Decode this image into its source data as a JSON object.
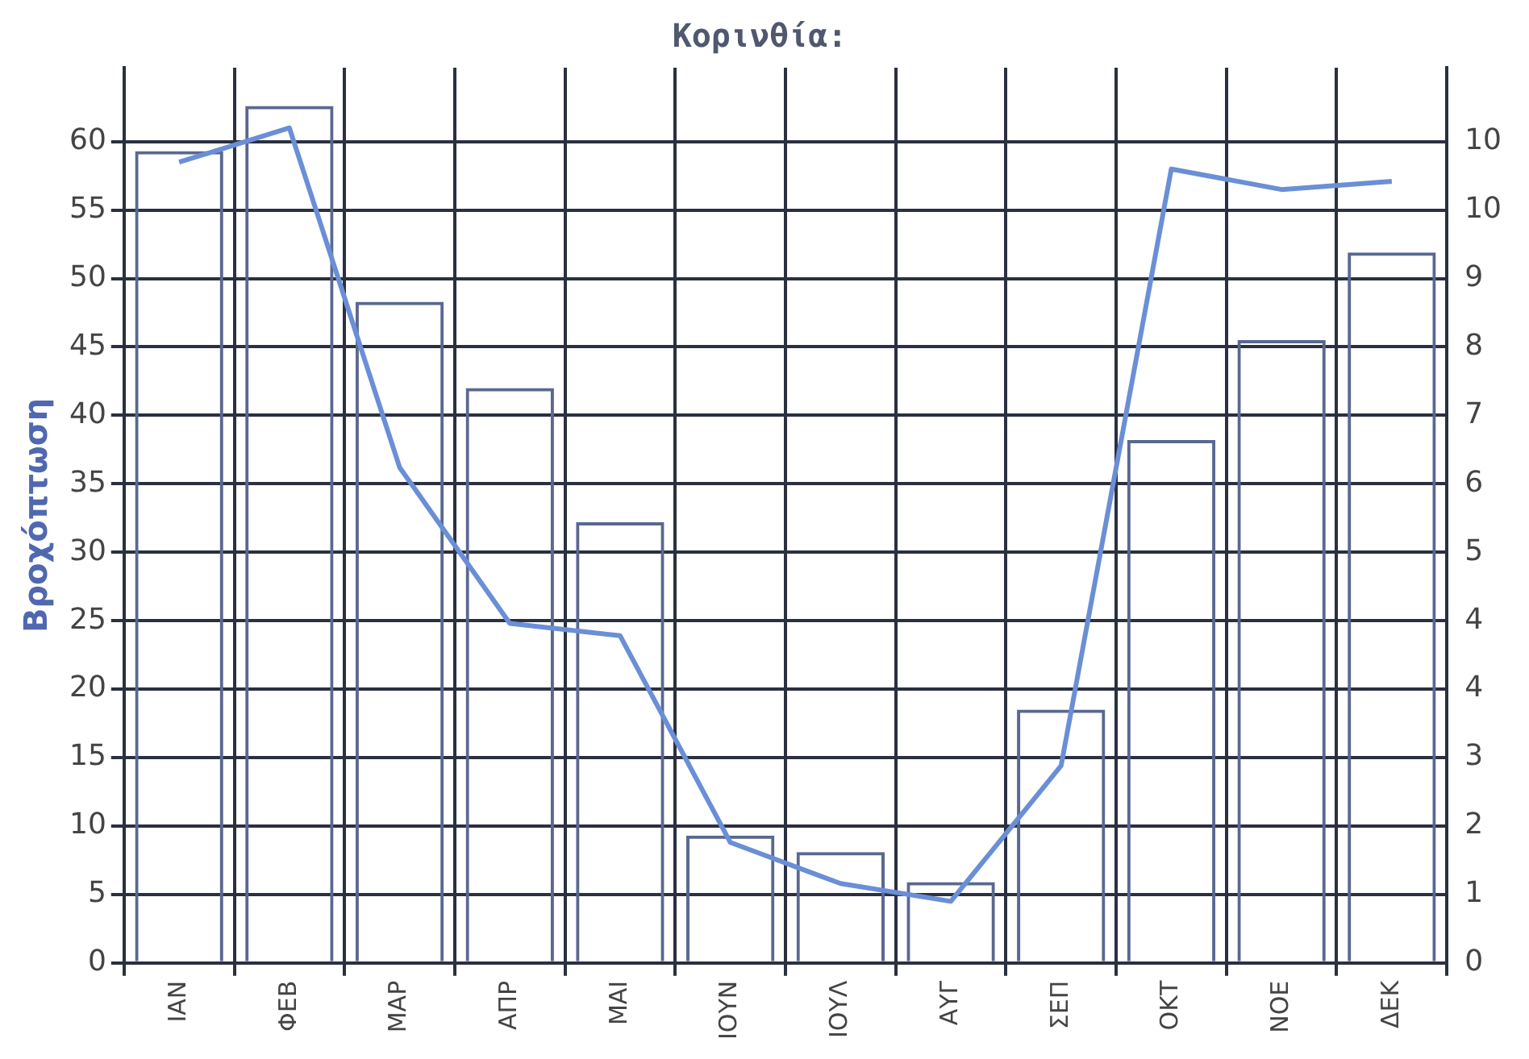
{
  "chart_data": {
    "type": "bar",
    "title": "Κορινθία:",
    "ylabel": "Βροχόπτωση",
    "categories": [
      "ΙΑΝ",
      "ΦΕΒ",
      "ΜΑΡ",
      "ΑΠΡ",
      "ΜΑΙ",
      "ΙΟΥΝ",
      "ΙΟΥΛ",
      "ΑΥΓ",
      "ΣΕΠ",
      "ΟΚΤ",
      "ΝΟΕ",
      "ΔΕΚ"
    ],
    "series": [
      {
        "color": "#5a6890",
        "values": [
          59.3,
          62.6,
          48.3,
          42.0,
          32.2,
          9.3,
          8.1,
          5.9,
          18.5,
          38.2,
          45.5,
          51.9
        ]
      },
      {
        "type": "line",
        "color": "#6a8fd6",
        "values": [
          58.5,
          61,
          36.2,
          24.8,
          23.9,
          8.8,
          5.8,
          4.5,
          14.4,
          58,
          56.5,
          57.1
        ]
      }
    ],
    "ylim": [
      0,
      65.4
    ],
    "yticks": [
      0,
      5,
      10,
      15,
      20,
      25,
      30,
      35,
      40,
      45,
      50,
      55,
      60
    ],
    "y2lim": [
      0,
      11.445
    ],
    "y2ticks": [
      0,
      {
        "value": 0.875,
        "label": "1"
      },
      {
        "value": 1.75,
        "label": "2"
      },
      {
        "value": 2.625,
        "label": "3"
      },
      {
        "value": 3.5,
        "label": "4"
      },
      {
        "value": 4.375,
        "label": "4"
      },
      {
        "value": 5.25,
        "label": "5"
      },
      {
        "value": 6.125,
        "label": "6"
      },
      {
        "value": 7,
        "label": "7"
      },
      {
        "value": 7.875,
        "label": "8"
      },
      {
        "value": 8.75,
        "label": "9"
      },
      {
        "value": 9.625,
        "label": "10"
      },
      {
        "value": 10.5,
        "label": "10"
      }
    ],
    "grid": true,
    "legend": false,
    "marker": "none",
    "line_style": "solid"
  }
}
